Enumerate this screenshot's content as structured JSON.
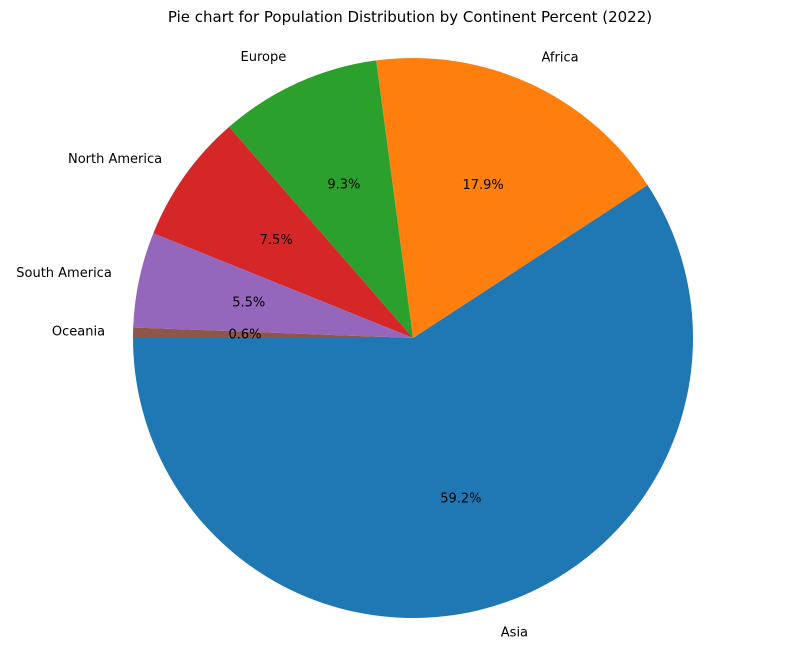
{
  "chart_data": {
    "type": "pie",
    "title": "Pie chart for Population Distribution by Continent Percent (2022)",
    "start_angle_deg": 180,
    "direction": "counterclockwise",
    "slices": [
      {
        "label": "Asia",
        "value": 59.2,
        "pct_label": "59.2%",
        "color": "#1f77b4"
      },
      {
        "label": "Africa",
        "value": 17.9,
        "pct_label": "17.9%",
        "color": "#ff7f0e"
      },
      {
        "label": "Europe",
        "value": 9.3,
        "pct_label": "9.3%",
        "color": "#2ca02c"
      },
      {
        "label": "North America",
        "value": 7.5,
        "pct_label": "7.5%",
        "color": "#d62728"
      },
      {
        "label": "South America",
        "value": 5.5,
        "pct_label": "5.5%",
        "color": "#9467bd"
      },
      {
        "label": "Oceania",
        "value": 0.6,
        "pct_label": "0.6%",
        "color": "#8c564b"
      }
    ]
  }
}
